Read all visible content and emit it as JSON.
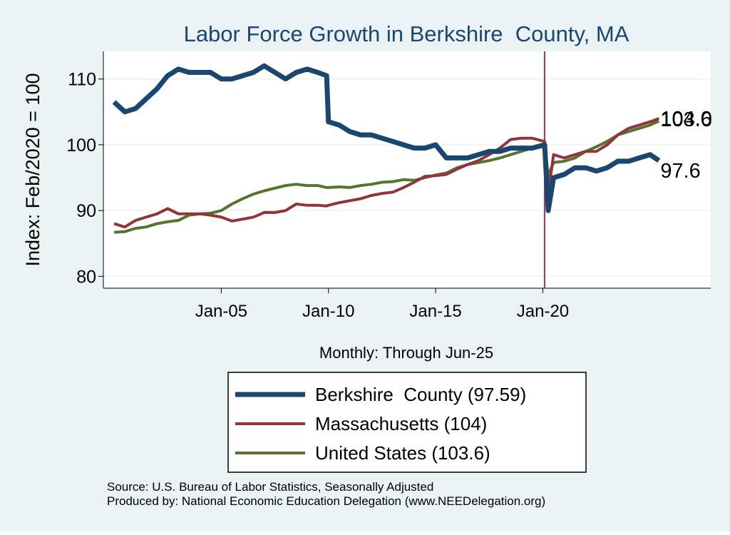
{
  "chart_data": {
    "type": "line",
    "title": "Labor Force Growth in Berkshire  County, MA",
    "y_label": "Index: Feb/2020 = 100",
    "x_label": "Monthly: Through Jun-25",
    "notes": [
      "Source: U.S. Bureau of Labor Statistics, Seasonally Adjusted",
      "Produced by: National Economic Education Delegation (www.NEEDelegation.org)"
    ],
    "x": [
      "2000-01",
      "2000-07",
      "2001-01",
      "2001-07",
      "2002-01",
      "2002-07",
      "2003-01",
      "2003-07",
      "2004-01",
      "2004-07",
      "2005-01",
      "2005-07",
      "2006-01",
      "2006-07",
      "2007-01",
      "2007-07",
      "2008-01",
      "2008-07",
      "2009-01",
      "2009-07",
      "2009-12",
      "2010-01",
      "2010-07",
      "2011-01",
      "2011-07",
      "2012-01",
      "2012-07",
      "2013-01",
      "2013-07",
      "2014-01",
      "2014-07",
      "2015-01",
      "2015-07",
      "2016-01",
      "2016-07",
      "2017-01",
      "2017-07",
      "2018-01",
      "2018-07",
      "2019-01",
      "2019-07",
      "2020-02",
      "2020-04",
      "2020-07",
      "2021-01",
      "2021-07",
      "2022-01",
      "2022-07",
      "2023-01",
      "2023-07",
      "2024-01",
      "2024-07",
      "2025-01",
      "2025-06"
    ],
    "xlim": [
      "1999-07",
      "2027-11"
    ],
    "xticks": [
      {
        "value": "2005-01",
        "label": "Jan-05"
      },
      {
        "value": "2010-01",
        "label": "Jan-10"
      },
      {
        "value": "2015-01",
        "label": "Jan-15"
      },
      {
        "value": "2020-01",
        "label": "Jan-20"
      }
    ],
    "ylim": [
      78.2,
      114.2
    ],
    "yticks": [
      80,
      90,
      100,
      110
    ],
    "grid": true,
    "vline": {
      "x": "2020-02",
      "color": "#b5334a"
    },
    "series": [
      {
        "name": "Berkshire  County (97.59)",
        "color": "#1a476f",
        "width": 7,
        "values": [
          106.5,
          105,
          105.5,
          107,
          108.5,
          110.5,
          111.5,
          111,
          111,
          111,
          110,
          110,
          110.5,
          111,
          112,
          111,
          110,
          111,
          111.5,
          111,
          110.5,
          103.5,
          103,
          102,
          101.5,
          101.5,
          101,
          100.5,
          100,
          99.5,
          99.5,
          100,
          98,
          98,
          98,
          98.5,
          99,
          99,
          99.5,
          99.5,
          99.5,
          100,
          90,
          95,
          95.5,
          96.5,
          96.5,
          96,
          96.5,
          97.5,
          97.5,
          98,
          98.5,
          97.6
        ]
      },
      {
        "name": "Massachusetts (104)",
        "color": "#90353b",
        "width": 4,
        "values": [
          88,
          87.5,
          88.5,
          89,
          89.5,
          90.3,
          89.5,
          89.5,
          89.5,
          89.3,
          89,
          88.4,
          88.7,
          89,
          89.7,
          89.7,
          90,
          91,
          90.8,
          90.8,
          90.7,
          90.8,
          91.2,
          91.5,
          91.8,
          92.3,
          92.6,
          92.8,
          93.5,
          94.3,
          95.2,
          95.3,
          95.5,
          96.3,
          97,
          97.6,
          98.5,
          99.5,
          100.8,
          101,
          101,
          100.5,
          92.5,
          98.5,
          98,
          98.5,
          99,
          99,
          100,
          101.5,
          102.5,
          103,
          103.5,
          104
        ],
        "value_labels": [
          null,
          null,
          null,
          null,
          null,
          null,
          null,
          null,
          null,
          null,
          null,
          null,
          null,
          null,
          null,
          null,
          null,
          null,
          null,
          null,
          null,
          null,
          null,
          null,
          null,
          null,
          null,
          null,
          null,
          null,
          null,
          null,
          null,
          null,
          null,
          null,
          null,
          null,
          null,
          null,
          null,
          null,
          null,
          null,
          null,
          null,
          null,
          null,
          null,
          null,
          null,
          null,
          null,
          "104.0"
        ]
      },
      {
        "name": "United States (103.6)",
        "color": "#55752f",
        "width": 4,
        "values": [
          86.7,
          86.8,
          87.3,
          87.5,
          88,
          88.3,
          88.5,
          89.3,
          89.5,
          89.6,
          90,
          91,
          91.8,
          92.5,
          93,
          93.4,
          93.8,
          94,
          93.8,
          93.8,
          93.5,
          93.5,
          93.6,
          93.5,
          93.8,
          94,
          94.3,
          94.4,
          94.7,
          94.6,
          95,
          95.4,
          95.7,
          96.5,
          97,
          97.3,
          97.6,
          98,
          98.5,
          99,
          99.5,
          100,
          95.3,
          97.3,
          97.5,
          98,
          99,
          99.7,
          100.5,
          101.5,
          102,
          102.5,
          103,
          103.6
        ]
      }
    ]
  }
}
